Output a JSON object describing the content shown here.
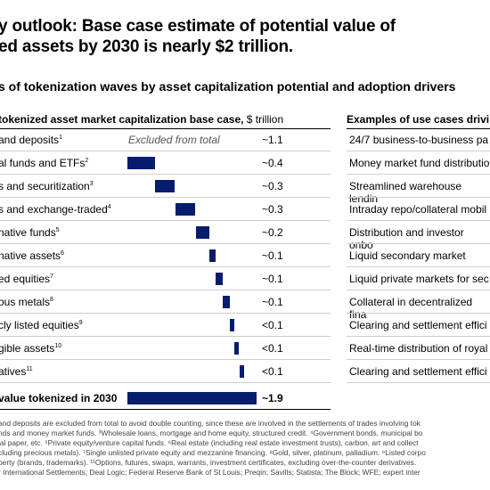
{
  "title_lines": [
    "y outlook: Base case estimate of potential value of",
    "ed assets by 2030 is nearly $2 trillion."
  ],
  "subtitle": "s of tokenization waves by asset capitalization potential and adoption drivers",
  "left_header": {
    "bold": " tokenized asset market capitalization base case,",
    "unit": " $ trillion"
  },
  "right_header": "Examples of use cases drivi",
  "excluded_label": "Excluded from total",
  "rows": [
    {
      "label": " and deposits",
      "note": "1",
      "value_label": "~1.1",
      "value": 1.1,
      "excluded": true,
      "use_case": "24/7 business-to-business pa"
    },
    {
      "label": "al funds and ETFs",
      "note": "2",
      "value_label": "~0.4",
      "value": 0.4,
      "start": 0,
      "use_case": "Money market fund distributio"
    },
    {
      "label": "s and securitization",
      "note": "3",
      "value_label": "~0.3",
      "value": 0.3,
      "start": 0.4,
      "use_case": "Streamlined warehouse lendin"
    },
    {
      "label": "s and exchange-traded",
      "label2": "",
      "note": "4",
      "value_label": "~0.3",
      "value": 0.3,
      "start": 0.7,
      "use_case": "Intraday repo/collateral mobil"
    },
    {
      "label": "native funds",
      "note": "5",
      "value_label": "~0.2",
      "value": 0.2,
      "start": 1.0,
      "use_case": "Distribution and investor onbo"
    },
    {
      "label": "native assets",
      "note": "6",
      "value_label": "~0.1",
      "value": 0.1,
      "start": 1.2,
      "use_case": "Liquid secondary market"
    },
    {
      "label": "ed equities",
      "note": "7",
      "value_label": "~0.1",
      "value": 0.1,
      "start": 1.3,
      "use_case": "Liquid private markets for sec"
    },
    {
      "label": "ous metals",
      "note": "8",
      "value_label": "~0.1",
      "value": 0.1,
      "start": 1.4,
      "use_case": "Collateral in decentralized fina"
    },
    {
      "label": "cly listed equities",
      "note": "9",
      "value_label": "<0.1",
      "value": 0.07,
      "start": 1.5,
      "use_case": "Clearing and settlement effici"
    },
    {
      "label": "gible assets",
      "note": "10",
      "value_label": "<0.1",
      "value": 0.07,
      "start": 1.57,
      "use_case": "Real-time distribution of royal"
    },
    {
      "label": "atives",
      "note": "11",
      "value_label": "<0.1",
      "value": 0.05,
      "start": 1.64,
      "use_case": "Clearing and settlement effici"
    }
  ],
  "total": {
    "label": " value tokenized in 2030",
    "value_label": "~1.9",
    "value": 1.9
  },
  "footnotes": [
    "and deposits are excluded from total to avoid double counting, since these are involved in the settlements of trades involving tok",
    "nds and money market funds. ³Wholesale loans, mortgage and home equity, structured credit. ⁴Government bonds, municipal bo",
    "ial paper, etc. ⁵Private equity/venture capital funds. ⁶Real estate (including real estate investment trusts), carbon, art and collect",
    "cluding precious metals). ⁷Single unlisted private equity and mezzanine financing. ⁸Gold, silver, platinum, palladium. ⁹Listed corpo",
    "perty (brands, trademarks). ¹¹Options, futures, swaps, warrants, investment certificates, excluding over-the-counter derivatives.",
    "r International Settlements; Deal Logic; Federal Reserve Bank of St Louis; Preqin; Savills; Statista; The Block; WFE; expert inter"
  ],
  "chart_data": {
    "type": "bar",
    "subtype": "waterfall",
    "unit": "$ trillion",
    "categories": [
      " and deposits",
      "al funds and ETFs",
      "s and securitization",
      "s and exchange-traded",
      "native funds",
      "native assets",
      "ed equities",
      "ous metals",
      "cly listed equities",
      "gible assets",
      "atives",
      " value tokenized in 2030"
    ],
    "values": [
      1.1,
      0.4,
      0.3,
      0.3,
      0.2,
      0.1,
      0.1,
      0.1,
      0.07,
      0.07,
      0.05,
      1.9
    ],
    "value_labels": [
      "~1.1",
      "~0.4",
      "~0.3",
      "~0.3",
      "~0.2",
      "~0.1",
      "~0.1",
      "~0.1",
      "<0.1",
      "<0.1",
      "<0.1",
      "~1.9"
    ],
    "excluded_from_total": [
      " and deposits"
    ],
    "bar_color": "#051c6f"
  }
}
